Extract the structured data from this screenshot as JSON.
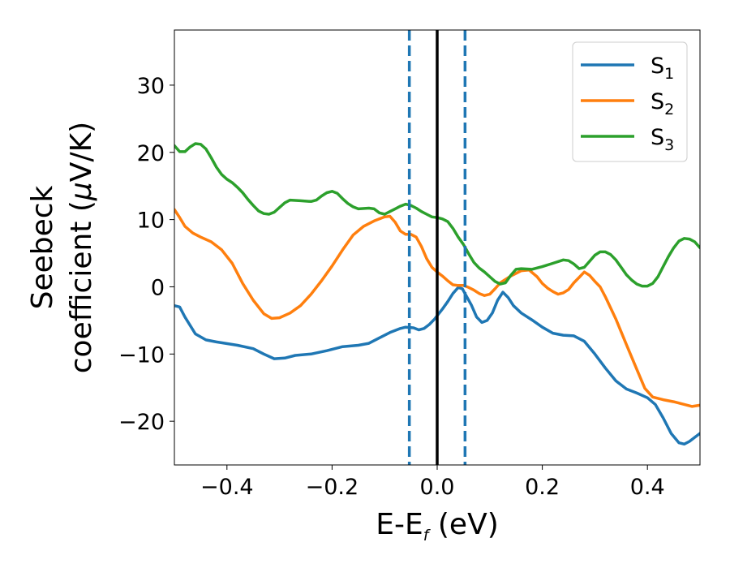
{
  "chart_data": {
    "type": "line",
    "xlabel": {
      "main": "E-E",
      "sub": "f",
      "unit": " (eV)"
    },
    "ylabel": {
      "line1": "Seebeck",
      "line2": "coefficient  (",
      "mu": "μ",
      "unit": "V/K)"
    },
    "xlim": [
      -0.5,
      0.5
    ],
    "ylim": [
      -26.5,
      38.2
    ],
    "xticks": [
      -0.4,
      -0.2,
      0.0,
      0.2,
      0.4
    ],
    "xtick_labels": [
      "−0.4",
      "−0.2",
      "0.0",
      "0.2",
      "0.4"
    ],
    "yticks": [
      -20,
      -10,
      0,
      10,
      20,
      30
    ],
    "ytick_labels": [
      "−20",
      "−10",
      "0",
      "10",
      "20",
      "30"
    ],
    "legend_position": "top-right",
    "vlines": [
      {
        "x": 0.0,
        "style": "solid",
        "color": "#000000"
      },
      {
        "x": -0.053,
        "style": "dashed",
        "color": "#1f77b4"
      },
      {
        "x": 0.053,
        "style": "dashed",
        "color": "#1f77b4"
      }
    ],
    "series": [
      {
        "name": "S",
        "sub": "1",
        "color": "#1f77b4",
        "points": [
          [
            -0.5,
            -2.8
          ],
          [
            -0.49,
            -3.0
          ],
          [
            -0.48,
            -4.5
          ],
          [
            -0.46,
            -7.0
          ],
          [
            -0.44,
            -7.9
          ],
          [
            -0.42,
            -8.2
          ],
          [
            -0.38,
            -8.7
          ],
          [
            -0.35,
            -9.2
          ],
          [
            -0.33,
            -10.0
          ],
          [
            -0.31,
            -10.7
          ],
          [
            -0.29,
            -10.6
          ],
          [
            -0.27,
            -10.2
          ],
          [
            -0.24,
            -10.0
          ],
          [
            -0.21,
            -9.5
          ],
          [
            -0.18,
            -8.9
          ],
          [
            -0.15,
            -8.7
          ],
          [
            -0.13,
            -8.4
          ],
          [
            -0.11,
            -7.6
          ],
          [
            -0.09,
            -6.8
          ],
          [
            -0.07,
            -6.2
          ],
          [
            -0.06,
            -6.0
          ],
          [
            -0.045,
            -6.1
          ],
          [
            -0.035,
            -6.4
          ],
          [
            -0.025,
            -6.2
          ],
          [
            -0.015,
            -5.6
          ],
          [
            -0.005,
            -4.8
          ],
          [
            0.0,
            -4.3
          ],
          [
            0.01,
            -3.3
          ],
          [
            0.02,
            -2.2
          ],
          [
            0.03,
            -1.0
          ],
          [
            0.04,
            -0.1
          ],
          [
            0.048,
            -0.3
          ],
          [
            0.055,
            -1.3
          ],
          [
            0.065,
            -2.7
          ],
          [
            0.075,
            -4.5
          ],
          [
            0.085,
            -5.3
          ],
          [
            0.095,
            -5.0
          ],
          [
            0.105,
            -3.9
          ],
          [
            0.115,
            -2.0
          ],
          [
            0.125,
            -0.8
          ],
          [
            0.135,
            -1.6
          ],
          [
            0.145,
            -2.8
          ],
          [
            0.16,
            -3.9
          ],
          [
            0.18,
            -4.9
          ],
          [
            0.2,
            -6.0
          ],
          [
            0.22,
            -6.9
          ],
          [
            0.24,
            -7.2
          ],
          [
            0.26,
            -7.3
          ],
          [
            0.28,
            -8.1
          ],
          [
            0.3,
            -10.0
          ],
          [
            0.32,
            -12.1
          ],
          [
            0.34,
            -14.0
          ],
          [
            0.36,
            -15.2
          ],
          [
            0.38,
            -15.8
          ],
          [
            0.4,
            -16.5
          ],
          [
            0.415,
            -17.5
          ],
          [
            0.43,
            -19.5
          ],
          [
            0.445,
            -21.8
          ],
          [
            0.46,
            -23.2
          ],
          [
            0.47,
            -23.4
          ],
          [
            0.48,
            -23.0
          ],
          [
            0.49,
            -22.4
          ],
          [
            0.5,
            -21.8
          ]
        ]
      },
      {
        "name": "S",
        "sub": "2",
        "color": "#ff7f0e",
        "points": [
          [
            -0.5,
            11.5
          ],
          [
            -0.49,
            10.3
          ],
          [
            -0.48,
            9.0
          ],
          [
            -0.465,
            8.0
          ],
          [
            -0.45,
            7.4
          ],
          [
            -0.43,
            6.7
          ],
          [
            -0.41,
            5.5
          ],
          [
            -0.39,
            3.5
          ],
          [
            -0.37,
            0.5
          ],
          [
            -0.35,
            -2.0
          ],
          [
            -0.33,
            -4.0
          ],
          [
            -0.315,
            -4.7
          ],
          [
            -0.3,
            -4.6
          ],
          [
            -0.28,
            -3.9
          ],
          [
            -0.26,
            -2.8
          ],
          [
            -0.24,
            -1.1
          ],
          [
            -0.22,
            0.9
          ],
          [
            -0.2,
            3.1
          ],
          [
            -0.18,
            5.5
          ],
          [
            -0.16,
            7.7
          ],
          [
            -0.14,
            9.0
          ],
          [
            -0.12,
            9.8
          ],
          [
            -0.1,
            10.4
          ],
          [
            -0.09,
            10.5
          ],
          [
            -0.08,
            9.6
          ],
          [
            -0.07,
            8.3
          ],
          [
            -0.06,
            7.8
          ],
          [
            -0.05,
            7.8
          ],
          [
            -0.04,
            7.4
          ],
          [
            -0.03,
            6.0
          ],
          [
            -0.02,
            4.2
          ],
          [
            -0.01,
            2.9
          ],
          [
            0.0,
            2.2
          ],
          [
            0.01,
            1.6
          ],
          [
            0.02,
            0.9
          ],
          [
            0.03,
            0.3
          ],
          [
            0.04,
            0.2
          ],
          [
            0.05,
            0.2
          ],
          [
            0.06,
            -0.1
          ],
          [
            0.07,
            -0.5
          ],
          [
            0.08,
            -1.0
          ],
          [
            0.09,
            -1.3
          ],
          [
            0.1,
            -1.1
          ],
          [
            0.11,
            -0.3
          ],
          [
            0.12,
            0.6
          ],
          [
            0.14,
            1.6
          ],
          [
            0.16,
            2.4
          ],
          [
            0.175,
            2.5
          ],
          [
            0.19,
            1.5
          ],
          [
            0.2,
            0.5
          ],
          [
            0.21,
            -0.2
          ],
          [
            0.22,
            -0.7
          ],
          [
            0.23,
            -1.1
          ],
          [
            0.24,
            -0.9
          ],
          [
            0.25,
            -0.4
          ],
          [
            0.26,
            0.6
          ],
          [
            0.27,
            1.4
          ],
          [
            0.28,
            2.2
          ],
          [
            0.29,
            1.7
          ],
          [
            0.3,
            0.8
          ],
          [
            0.31,
            0.0
          ],
          [
            0.32,
            -1.5
          ],
          [
            0.34,
            -4.8
          ],
          [
            0.36,
            -8.6
          ],
          [
            0.38,
            -12.3
          ],
          [
            0.395,
            -15.1
          ],
          [
            0.41,
            -16.4
          ],
          [
            0.43,
            -16.8
          ],
          [
            0.45,
            -17.1
          ],
          [
            0.47,
            -17.5
          ],
          [
            0.485,
            -17.8
          ],
          [
            0.5,
            -17.6
          ]
        ]
      },
      {
        "name": "S",
        "sub": "3",
        "color": "#2ca02c",
        "points": [
          [
            -0.5,
            21.0
          ],
          [
            -0.49,
            20.1
          ],
          [
            -0.48,
            20.1
          ],
          [
            -0.47,
            20.8
          ],
          [
            -0.46,
            21.3
          ],
          [
            -0.45,
            21.2
          ],
          [
            -0.44,
            20.5
          ],
          [
            -0.43,
            19.2
          ],
          [
            -0.42,
            17.8
          ],
          [
            -0.41,
            16.7
          ],
          [
            -0.4,
            16.0
          ],
          [
            -0.39,
            15.5
          ],
          [
            -0.38,
            14.8
          ],
          [
            -0.37,
            14.0
          ],
          [
            -0.36,
            13.0
          ],
          [
            -0.35,
            12.1
          ],
          [
            -0.34,
            11.3
          ],
          [
            -0.33,
            10.9
          ],
          [
            -0.32,
            10.8
          ],
          [
            -0.31,
            11.1
          ],
          [
            -0.3,
            11.8
          ],
          [
            -0.29,
            12.5
          ],
          [
            -0.28,
            12.9
          ],
          [
            -0.26,
            12.8
          ],
          [
            -0.24,
            12.7
          ],
          [
            -0.23,
            12.9
          ],
          [
            -0.22,
            13.5
          ],
          [
            -0.21,
            14.0
          ],
          [
            -0.2,
            14.2
          ],
          [
            -0.19,
            13.9
          ],
          [
            -0.18,
            13.1
          ],
          [
            -0.17,
            12.4
          ],
          [
            -0.16,
            11.9
          ],
          [
            -0.15,
            11.6
          ],
          [
            -0.13,
            11.7
          ],
          [
            -0.12,
            11.6
          ],
          [
            -0.11,
            11.0
          ],
          [
            -0.1,
            10.8
          ],
          [
            -0.09,
            11.2
          ],
          [
            -0.08,
            11.6
          ],
          [
            -0.07,
            12.0
          ],
          [
            -0.06,
            12.3
          ],
          [
            -0.05,
            12.1
          ],
          [
            -0.04,
            11.7
          ],
          [
            -0.03,
            11.2
          ],
          [
            -0.02,
            10.8
          ],
          [
            -0.01,
            10.4
          ],
          [
            0.0,
            10.3
          ],
          [
            0.01,
            10.1
          ],
          [
            0.02,
            9.7
          ],
          [
            0.03,
            8.7
          ],
          [
            0.04,
            7.4
          ],
          [
            0.05,
            6.3
          ],
          [
            0.06,
            4.9
          ],
          [
            0.07,
            3.6
          ],
          [
            0.08,
            2.8
          ],
          [
            0.09,
            2.2
          ],
          [
            0.1,
            1.5
          ],
          [
            0.11,
            0.8
          ],
          [
            0.12,
            0.4
          ],
          [
            0.13,
            0.6
          ],
          [
            0.14,
            1.7
          ],
          [
            0.15,
            2.6
          ],
          [
            0.16,
            2.7
          ],
          [
            0.18,
            2.6
          ],
          [
            0.2,
            3.0
          ],
          [
            0.22,
            3.5
          ],
          [
            0.24,
            4.0
          ],
          [
            0.25,
            3.9
          ],
          [
            0.26,
            3.4
          ],
          [
            0.27,
            2.7
          ],
          [
            0.28,
            2.9
          ],
          [
            0.29,
            3.8
          ],
          [
            0.3,
            4.7
          ],
          [
            0.31,
            5.2
          ],
          [
            0.32,
            5.2
          ],
          [
            0.33,
            4.8
          ],
          [
            0.34,
            4.0
          ],
          [
            0.35,
            2.9
          ],
          [
            0.36,
            1.8
          ],
          [
            0.37,
            1.0
          ],
          [
            0.38,
            0.4
          ],
          [
            0.39,
            0.1
          ],
          [
            0.4,
            0.1
          ],
          [
            0.41,
            0.5
          ],
          [
            0.42,
            1.5
          ],
          [
            0.43,
            3.0
          ],
          [
            0.44,
            4.5
          ],
          [
            0.45,
            5.8
          ],
          [
            0.46,
            6.8
          ],
          [
            0.47,
            7.2
          ],
          [
            0.48,
            7.1
          ],
          [
            0.49,
            6.7
          ],
          [
            0.5,
            5.8
          ]
        ]
      }
    ]
  }
}
